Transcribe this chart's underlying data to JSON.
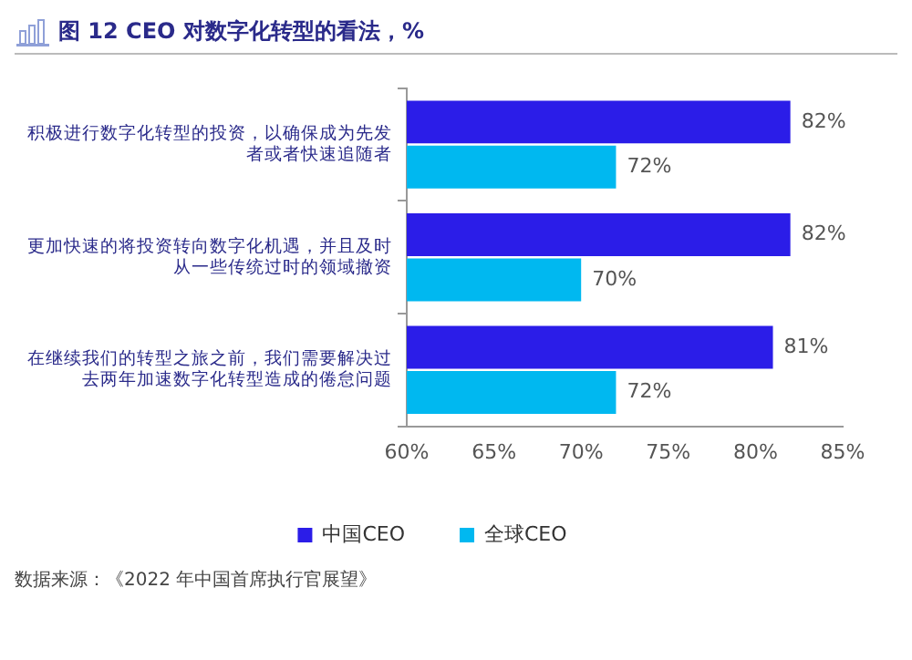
{
  "chart_data": {
    "type": "bar",
    "orientation": "horizontal",
    "title": "图 12 CEO 对数字化转型的看法，%",
    "categories": [
      "积极进行数字化转型的投资，以确保成为先发者或者快速追随者",
      "更加快速的将投资转向数字化机遇，并且及时从一些传统过时的领域撤资",
      "在继续我们的转型之旅之前，我们需要解决过去两年加速数字化转型造成的倦怠问题"
    ],
    "series": [
      {
        "name": "中国CEO",
        "color": "#2b1de8",
        "values": [
          82,
          82,
          81
        ],
        "value_labels": [
          "82%",
          "82%",
          "81%"
        ]
      },
      {
        "name": "全球CEO",
        "color": "#00b8f0",
        "values": [
          72,
          70,
          72
        ],
        "value_labels": [
          "72%",
          "70%",
          "72%"
        ]
      }
    ],
    "xlim": [
      60,
      85
    ],
    "xticks": [
      {
        "value": 60,
        "label": "60%"
      },
      {
        "value": 65,
        "label": "65%"
      },
      {
        "value": 70,
        "label": "70%"
      },
      {
        "value": 75,
        "label": "75%"
      },
      {
        "value": 80,
        "label": "80%"
      },
      {
        "value": 85,
        "label": "85%"
      }
    ],
    "grid": false,
    "legend": "bottom",
    "annotations": [
      "数据来源：《2022 年中国首席执行官展望》"
    ]
  }
}
